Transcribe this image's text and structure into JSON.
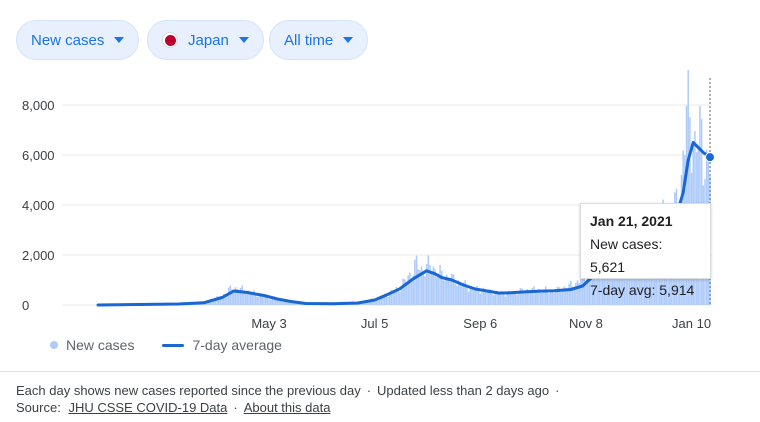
{
  "filters": {
    "metric": "New cases",
    "location": "Japan",
    "range": "All time"
  },
  "chart_data": {
    "type": "bar",
    "y_ticks": [
      "8,000",
      "6,000",
      "4,000",
      "2,000",
      "0"
    ],
    "x_ticks": [
      "May 3",
      "Jul 5",
      "Sep 6",
      "Nov 8",
      "Jan 10"
    ],
    "ylim": [
      0,
      8000
    ],
    "grid": true,
    "series": [
      {
        "name": "New cases",
        "kind": "bar",
        "color": "#aecbfa",
        "points": [
          [
            "2020-01-22",
            0
          ],
          [
            "2020-02-15",
            30
          ],
          [
            "2020-03-10",
            40
          ],
          [
            "2020-03-25",
            100
          ],
          [
            "2020-04-05",
            350
          ],
          [
            "2020-04-11",
            700
          ],
          [
            "2020-04-18",
            600
          ],
          [
            "2020-04-25",
            450
          ],
          [
            "2020-05-02",
            300
          ],
          [
            "2020-05-09",
            200
          ],
          [
            "2020-05-16",
            90
          ],
          [
            "2020-05-23",
            40
          ],
          [
            "2020-06-01",
            40
          ],
          [
            "2020-06-15",
            60
          ],
          [
            "2020-06-25",
            80
          ],
          [
            "2020-07-05",
            250
          ],
          [
            "2020-07-12",
            400
          ],
          [
            "2020-07-20",
            700
          ],
          [
            "2020-07-26",
            1200
          ],
          [
            "2020-07-30",
            1650
          ],
          [
            "2020-08-02",
            1400
          ],
          [
            "2020-08-07",
            1600
          ],
          [
            "2020-08-12",
            1300
          ],
          [
            "2020-08-18",
            1100
          ],
          [
            "2020-08-25",
            900
          ],
          [
            "2020-09-01",
            650
          ],
          [
            "2020-09-08",
            600
          ],
          [
            "2020-09-15",
            500
          ],
          [
            "2020-09-22",
            450
          ],
          [
            "2020-09-29",
            550
          ],
          [
            "2020-10-06",
            600
          ],
          [
            "2020-10-13",
            600
          ],
          [
            "2020-10-20",
            550
          ],
          [
            "2020-10-27",
            700
          ],
          [
            "2020-11-03",
            900
          ],
          [
            "2020-11-10",
            1300
          ],
          [
            "2020-11-17",
            1800
          ],
          [
            "2020-11-24",
            2200
          ],
          [
            "2020-12-01",
            2300
          ],
          [
            "2020-12-08",
            2600
          ],
          [
            "2020-12-15",
            2900
          ],
          [
            "2020-12-22",
            3200
          ],
          [
            "2020-12-29",
            3700
          ],
          [
            "2021-01-03",
            4000
          ],
          [
            "2021-01-07",
            7500
          ],
          [
            "2021-01-09",
            7900
          ],
          [
            "2021-01-12",
            6000
          ],
          [
            "2021-01-16",
            7000
          ],
          [
            "2021-01-19",
            5300
          ],
          [
            "2021-01-21",
            5621
          ]
        ]
      },
      {
        "name": "7-day average",
        "kind": "line",
        "color": "#1967d2",
        "points": [
          [
            "2020-01-22",
            0
          ],
          [
            "2020-02-15",
            20
          ],
          [
            "2020-03-10",
            40
          ],
          [
            "2020-03-25",
            90
          ],
          [
            "2020-04-05",
            300
          ],
          [
            "2020-04-12",
            560
          ],
          [
            "2020-04-20",
            500
          ],
          [
            "2020-04-30",
            380
          ],
          [
            "2020-05-08",
            240
          ],
          [
            "2020-05-16",
            140
          ],
          [
            "2020-05-25",
            60
          ],
          [
            "2020-06-10",
            50
          ],
          [
            "2020-06-25",
            80
          ],
          [
            "2020-07-05",
            200
          ],
          [
            "2020-07-12",
            400
          ],
          [
            "2020-07-20",
            650
          ],
          [
            "2020-07-28",
            1050
          ],
          [
            "2020-08-05",
            1370
          ],
          [
            "2020-08-10",
            1250
          ],
          [
            "2020-08-14",
            1100
          ],
          [
            "2020-08-20",
            1000
          ],
          [
            "2020-08-27",
            800
          ],
          [
            "2020-09-03",
            640
          ],
          [
            "2020-09-10",
            560
          ],
          [
            "2020-09-17",
            480
          ],
          [
            "2020-09-24",
            490
          ],
          [
            "2020-10-01",
            520
          ],
          [
            "2020-10-10",
            550
          ],
          [
            "2020-10-20",
            570
          ],
          [
            "2020-10-30",
            620
          ],
          [
            "2020-11-06",
            760
          ],
          [
            "2020-11-13",
            1200
          ],
          [
            "2020-11-20",
            1700
          ],
          [
            "2020-11-27",
            2100
          ],
          [
            "2020-12-04",
            2300
          ],
          [
            "2020-12-11",
            2600
          ],
          [
            "2020-12-18",
            2850
          ],
          [
            "2020-12-25",
            3200
          ],
          [
            "2021-01-01",
            3600
          ],
          [
            "2021-01-05",
            4500
          ],
          [
            "2021-01-08",
            5800
          ],
          [
            "2021-01-11",
            6500
          ],
          [
            "2021-01-14",
            6300
          ],
          [
            "2021-01-17",
            6100
          ],
          [
            "2021-01-21",
            5914
          ]
        ]
      }
    ],
    "tooltip": {
      "date": "Jan 21, 2021",
      "new_cases": 5621,
      "avg": 5914
    }
  },
  "tooltip": {
    "title": "Jan 21, 2021",
    "new_cases_line": "New cases: 5,621",
    "avg_line": "7-day avg: 5,914"
  },
  "legend": {
    "bar_label": "New cases",
    "line_label": "7-day average"
  },
  "footer": {
    "note": "Each day shows new cases reported since the previous day",
    "updated": "Updated less than 2 days ago",
    "source_label": "Source:",
    "source_link": "JHU CSSE COVID-19 Data",
    "about_link": "About this data"
  }
}
